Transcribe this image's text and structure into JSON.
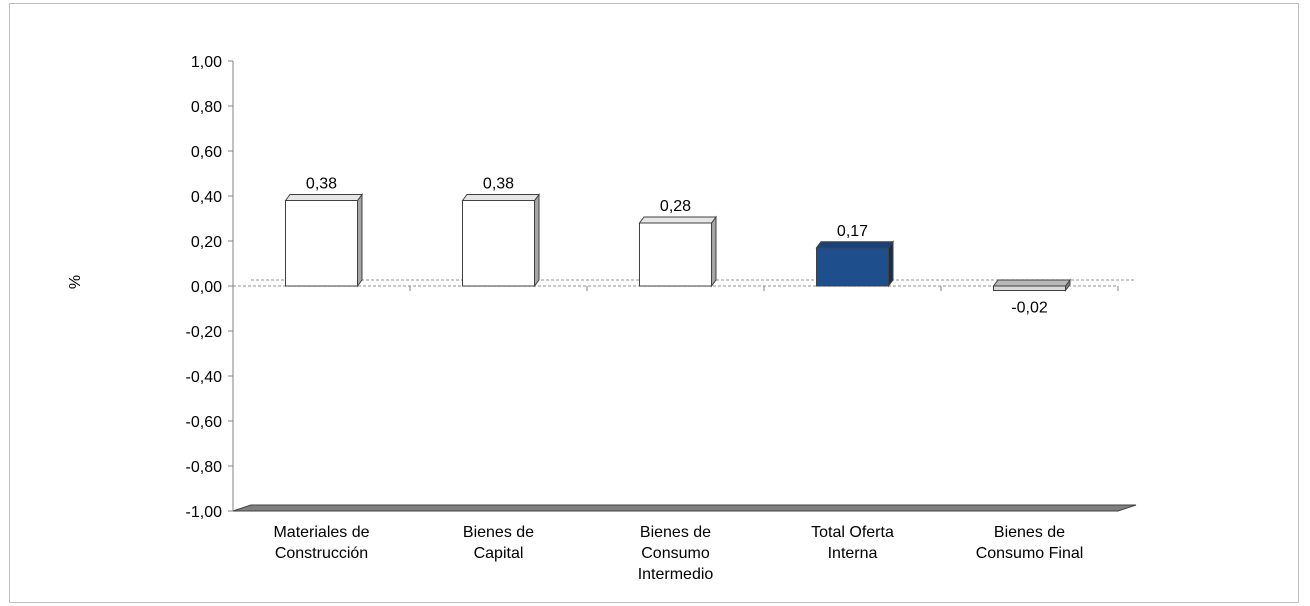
{
  "chart_data": {
    "type": "bar",
    "ylabel": "%",
    "xlabel": "",
    "title": "",
    "ylim": [
      -1.0,
      1.0
    ],
    "yticks": [
      "1,00",
      "0,80",
      "0,60",
      "0,40",
      "0,20",
      "0,00",
      "-0,20",
      "-0,40",
      "-0,60",
      "-0,80",
      "-1,00"
    ],
    "categories": [
      [
        "Materiales de",
        "Construcción"
      ],
      [
        "Bienes de",
        "Capital"
      ],
      [
        "Bienes de",
        "Consumo",
        "Intermedio"
      ],
      [
        "Total Oferta",
        "Interna"
      ],
      [
        "Bienes de",
        "Consumo Final"
      ]
    ],
    "values": [
      0.38,
      0.38,
      0.28,
      0.17,
      -0.02
    ],
    "value_labels": [
      "0,38",
      "0,38",
      "0,28",
      "0,17",
      "-0,02"
    ],
    "colors": [
      "#ffffff",
      "#ffffff",
      "#ffffff",
      "#1f4e8c",
      "#d9d9d9"
    ],
    "grid": false,
    "legend": "none"
  }
}
